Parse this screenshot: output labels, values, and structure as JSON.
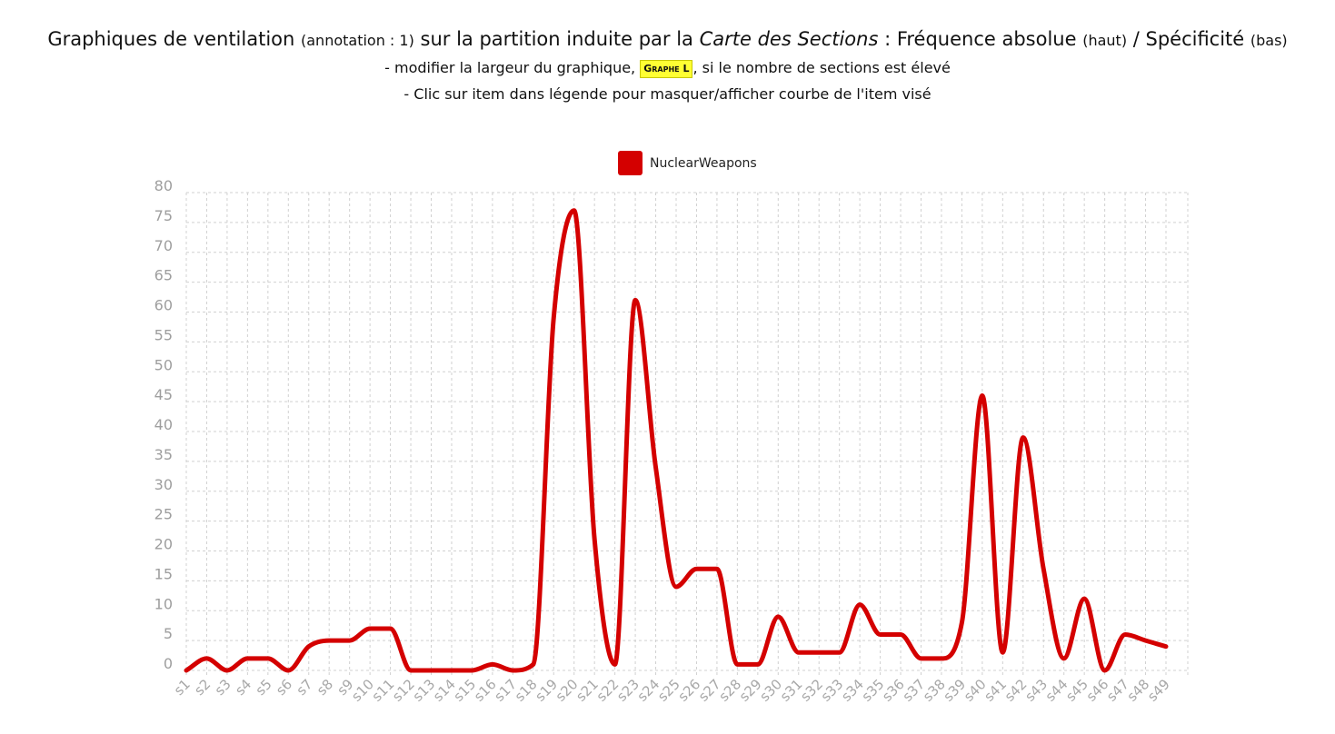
{
  "header": {
    "t1": "Graphiques de ventilation ",
    "t2": "(annotation : 1)",
    "t3": " sur la partition induite par la ",
    "t4": "Carte des Sections",
    "t5": " : Fréquence absolue ",
    "t6": "(haut)",
    "t7": " / Spécificité ",
    "t8": "(bas)",
    "sub1_pre": "- modifier la largeur du graphique, ",
    "sub1_badge": "Graphe L",
    "sub1_post": ", si le nombre de sections est élevé",
    "sub2": "- Clic sur item dans légende pour masquer/afficher courbe de l'item visé"
  },
  "colors": {
    "series": "#d40000",
    "grid": "#d0d0d0",
    "badge": "#ffff33"
  },
  "chart_data": {
    "type": "line",
    "title": "",
    "xlabel": "",
    "ylabel": "",
    "ylim": [
      0,
      80
    ],
    "yticks": [
      0,
      5,
      10,
      15,
      20,
      25,
      30,
      35,
      40,
      45,
      50,
      55,
      60,
      65,
      70,
      75,
      80
    ],
    "grid": true,
    "legend_position": "top-center",
    "categories": [
      "s1",
      "s2",
      "s3",
      "s4",
      "s5",
      "s6",
      "s7",
      "s8",
      "s9",
      "s10",
      "s11",
      "s12",
      "s13",
      "s14",
      "s15",
      "s16",
      "s17",
      "s18",
      "s19",
      "s20",
      "s21",
      "s22",
      "s23",
      "s24",
      "s25",
      "s26",
      "s27",
      "s28",
      "s29",
      "s30",
      "s31",
      "s32",
      "s33",
      "s34",
      "s35",
      "s36",
      "s37",
      "s38",
      "s39",
      "s40",
      "s41",
      "s42",
      "s43",
      "s44",
      "s45",
      "s46",
      "s47",
      "s48",
      "s49"
    ],
    "series": [
      {
        "name": "NuclearWeapons",
        "values": [
          0,
          2,
          0,
          2,
          2,
          0,
          4,
          5,
          5,
          7,
          7,
          0,
          0,
          0,
          0,
          1,
          0,
          1,
          59,
          77,
          22,
          1,
          62,
          34,
          14,
          17,
          17,
          1,
          1,
          9,
          3,
          3,
          3,
          11,
          6,
          6,
          2,
          2,
          8,
          46,
          3,
          39,
          17,
          2,
          12,
          0,
          6,
          5,
          4
        ]
      }
    ]
  }
}
